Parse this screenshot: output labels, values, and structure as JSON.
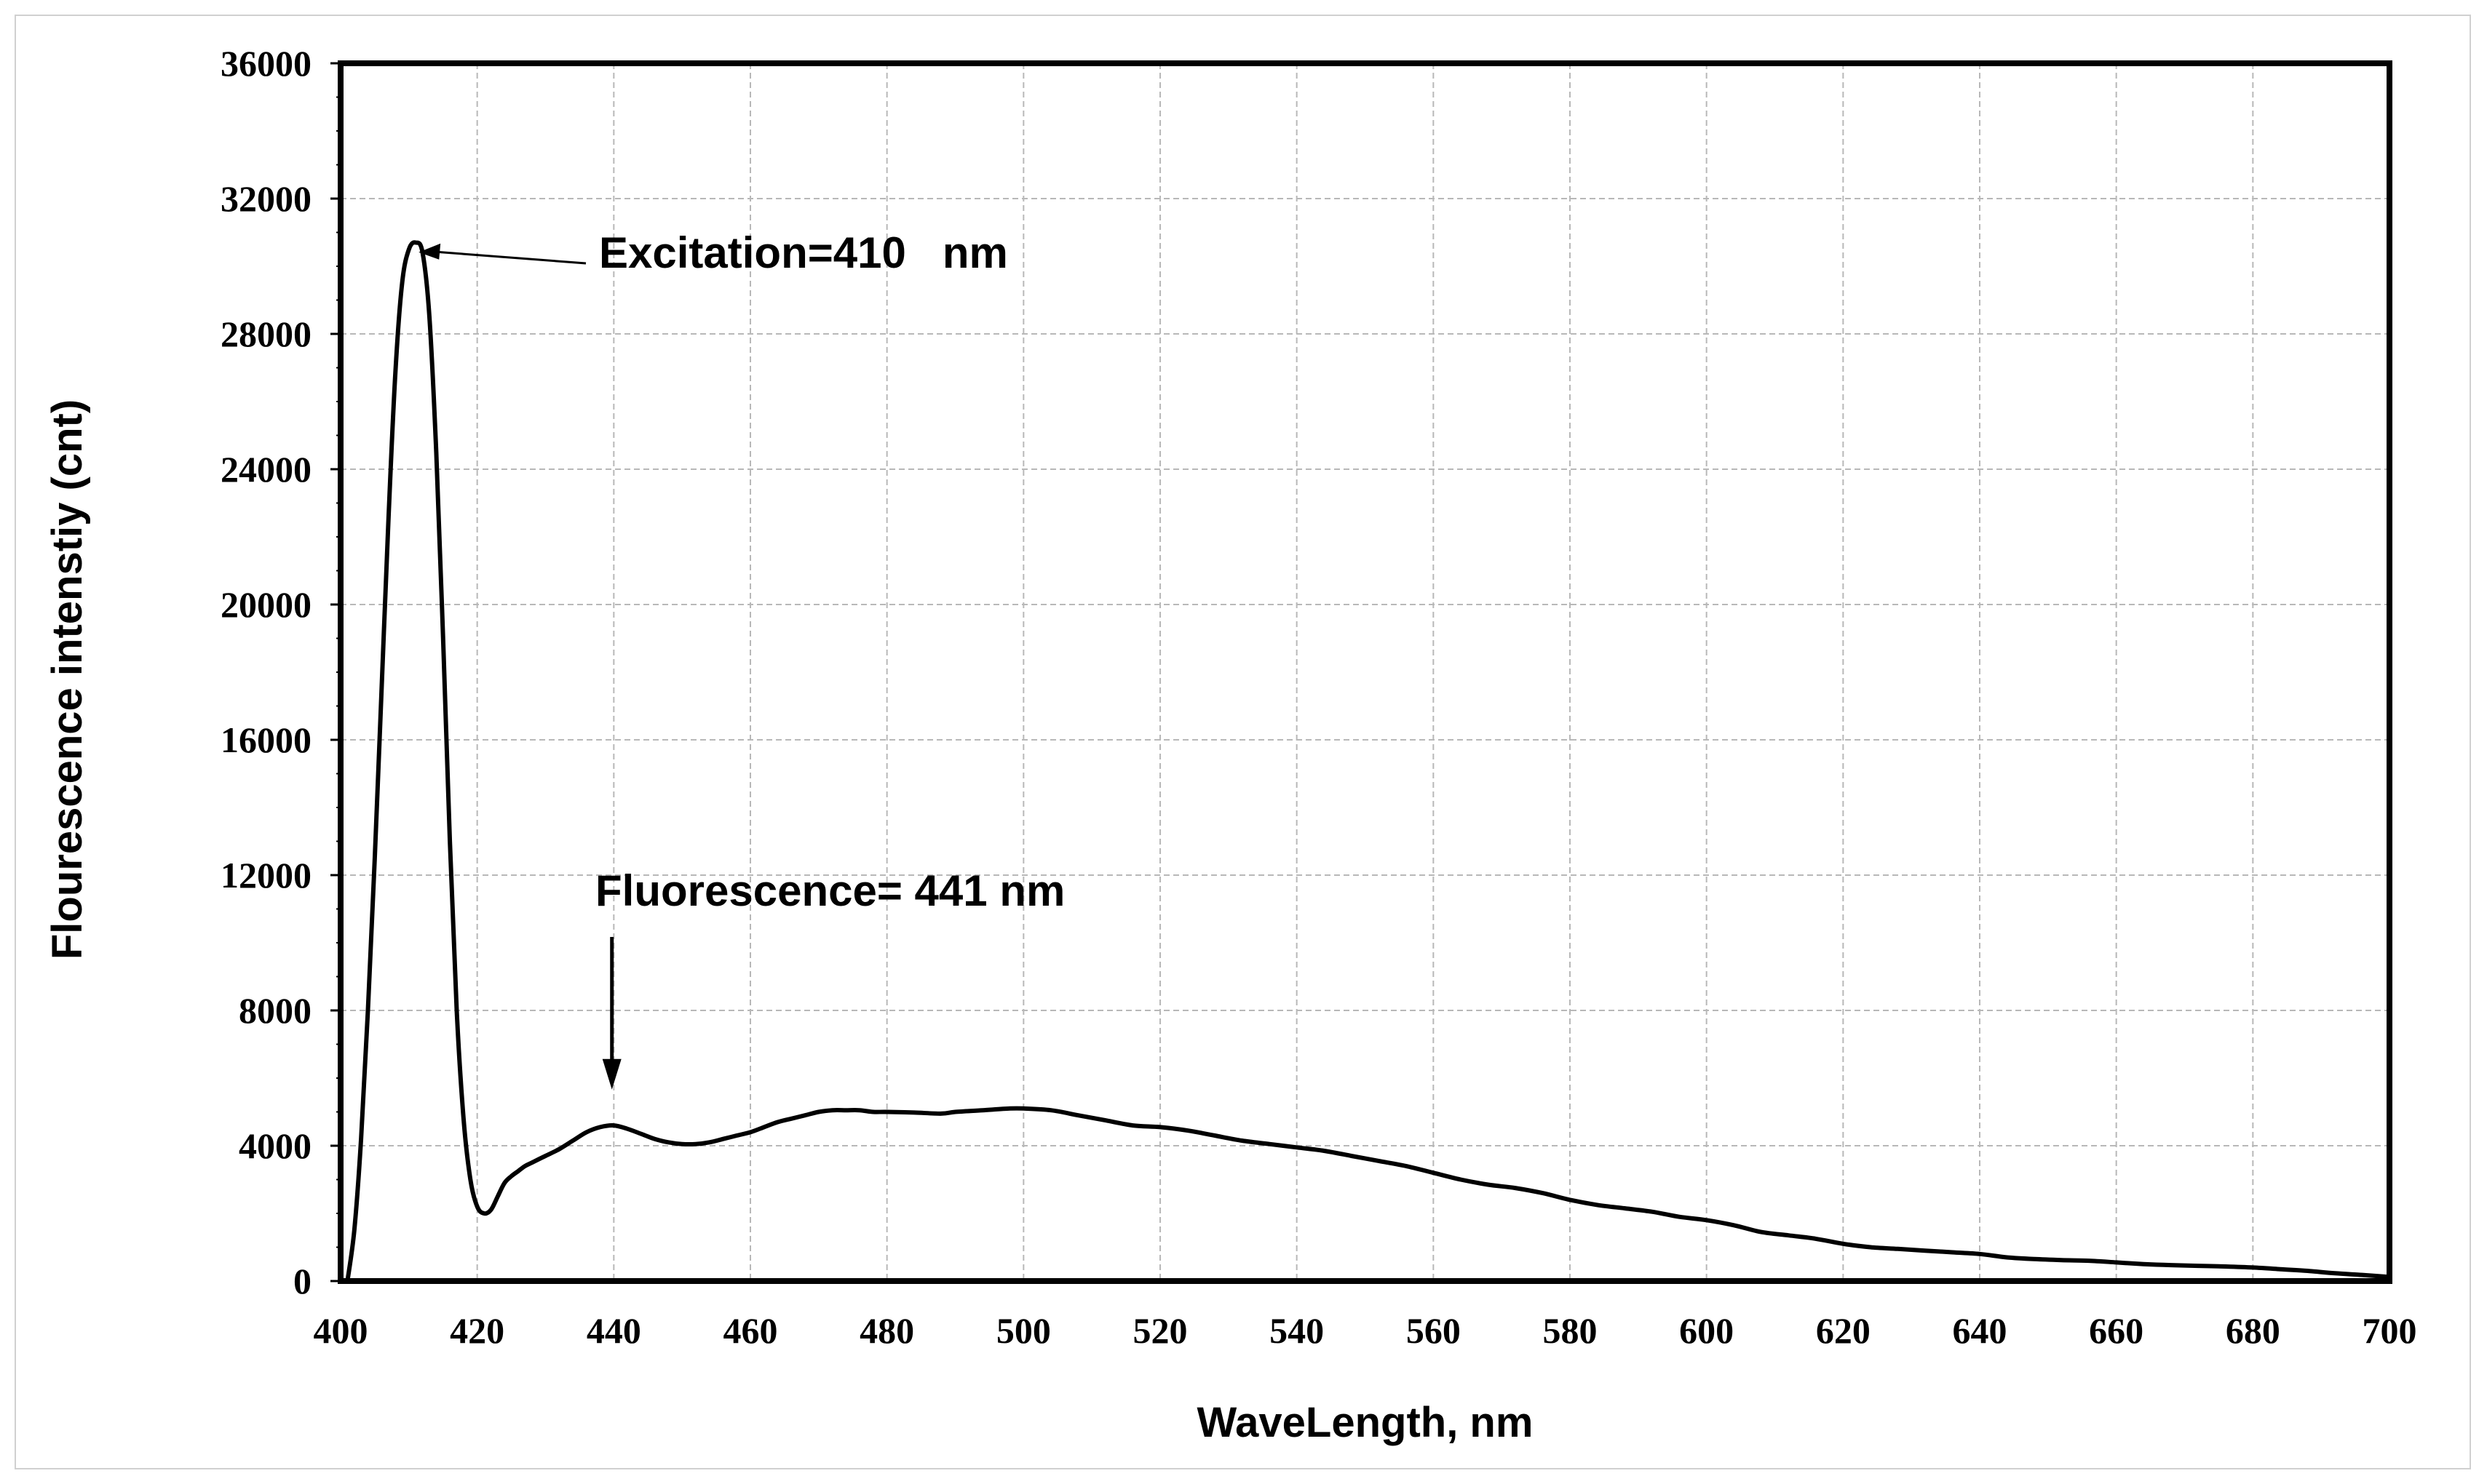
{
  "chart_data": {
    "type": "line",
    "xlabel": "WaveLength, nm",
    "ylabel": "Flourescence intenstiy (cnt)",
    "xlim": [
      400,
      700
    ],
    "ylim": [
      0,
      36000
    ],
    "x_ticks": [
      "400",
      "420",
      "440",
      "460",
      "480",
      "500",
      "520",
      "540",
      "560",
      "580",
      "600",
      "620",
      "640",
      "660",
      "680",
      "700"
    ],
    "y_ticks": [
      "0",
      "4000",
      "8000",
      "12000",
      "16000",
      "20000",
      "24000",
      "28000",
      "32000",
      "36000"
    ],
    "grid": true,
    "annotations": [
      {
        "text": "Excitation=410   nm",
        "x": 411,
        "y": 30500
      },
      {
        "text": "Fluorescence= 441 nm",
        "x": 441,
        "y": 4800
      }
    ],
    "series": [
      {
        "x": [
          401,
          402,
          403,
          404,
          405,
          406,
          407,
          408,
          409,
          410,
          411,
          412,
          413,
          414,
          415,
          416,
          417,
          418,
          419,
          420,
          421,
          422,
          423,
          424,
          425,
          426,
          427,
          428,
          430,
          432,
          434,
          436,
          438,
          440,
          442,
          444,
          446,
          448,
          450,
          452,
          454,
          456,
          458,
          460,
          462,
          464,
          466,
          468,
          470,
          472,
          474,
          476,
          478,
          480,
          484,
          488,
          490,
          494,
          498,
          500,
          504,
          508,
          512,
          516,
          520,
          524,
          528,
          532,
          536,
          540,
          544,
          548,
          552,
          556,
          560,
          564,
          568,
          572,
          576,
          580,
          584,
          588,
          592,
          596,
          600,
          604,
          608,
          612,
          616,
          620,
          624,
          628,
          632,
          636,
          640,
          644,
          648,
          652,
          656,
          660,
          664,
          668,
          672,
          676,
          680,
          684,
          688,
          692,
          696,
          700
        ],
        "y": [
          0,
          1500,
          4200,
          8000,
          12500,
          17500,
          22500,
          26800,
          29500,
          30500,
          30700,
          30400,
          28500,
          24500,
          19000,
          13000,
          8000,
          4800,
          3000,
          2200,
          2000,
          2100,
          2500,
          2900,
          3100,
          3250,
          3400,
          3500,
          3700,
          3900,
          4150,
          4400,
          4550,
          4600,
          4500,
          4350,
          4200,
          4100,
          4050,
          4050,
          4100,
          4200,
          4300,
          4400,
          4550,
          4700,
          4800,
          4900,
          5000,
          5050,
          5050,
          5050,
          5000,
          5000,
          4980,
          4950,
          5000,
          5050,
          5100,
          5100,
          5050,
          4900,
          4750,
          4600,
          4550,
          4450,
          4300,
          4150,
          4050,
          3950,
          3850,
          3700,
          3550,
          3400,
          3200,
          3000,
          2850,
          2750,
          2600,
          2400,
          2250,
          2150,
          2050,
          1900,
          1800,
          1650,
          1450,
          1350,
          1250,
          1100,
          1000,
          950,
          900,
          850,
          800,
          700,
          650,
          620,
          600,
          550,
          500,
          470,
          450,
          430,
          400,
          350,
          300,
          230,
          180,
          120
        ]
      }
    ]
  }
}
